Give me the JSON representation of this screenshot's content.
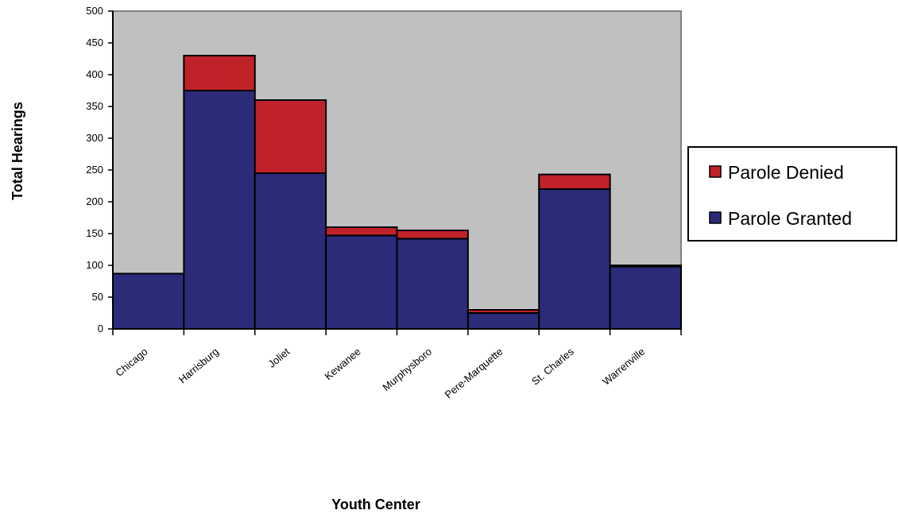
{
  "chart_data": {
    "type": "bar",
    "stacked": true,
    "categories": [
      "Chicago",
      "Harrisburg",
      "Joliet",
      "Kewanee",
      "Murphysboro",
      "Pere-Marquette",
      "St. Charles",
      "Warrenville"
    ],
    "series": [
      {
        "name": "Parole Granted",
        "color": "#2b2b7a",
        "values": [
          87,
          375,
          245,
          147,
          142,
          25,
          220,
          98
        ]
      },
      {
        "name": "Parole Denied",
        "color": "#c0222a",
        "values": [
          0,
          55,
          115,
          13,
          13,
          5,
          23,
          2
        ]
      }
    ],
    "ylim": [
      0,
      500
    ],
    "yticks": [
      0,
      50,
      100,
      150,
      200,
      250,
      300,
      350,
      400,
      450,
      500
    ],
    "xlabel": "Youth Center",
    "ylabel": "Total Hearings",
    "legend_position": "right",
    "grid": false,
    "plot_background": "#c0c0c0"
  }
}
